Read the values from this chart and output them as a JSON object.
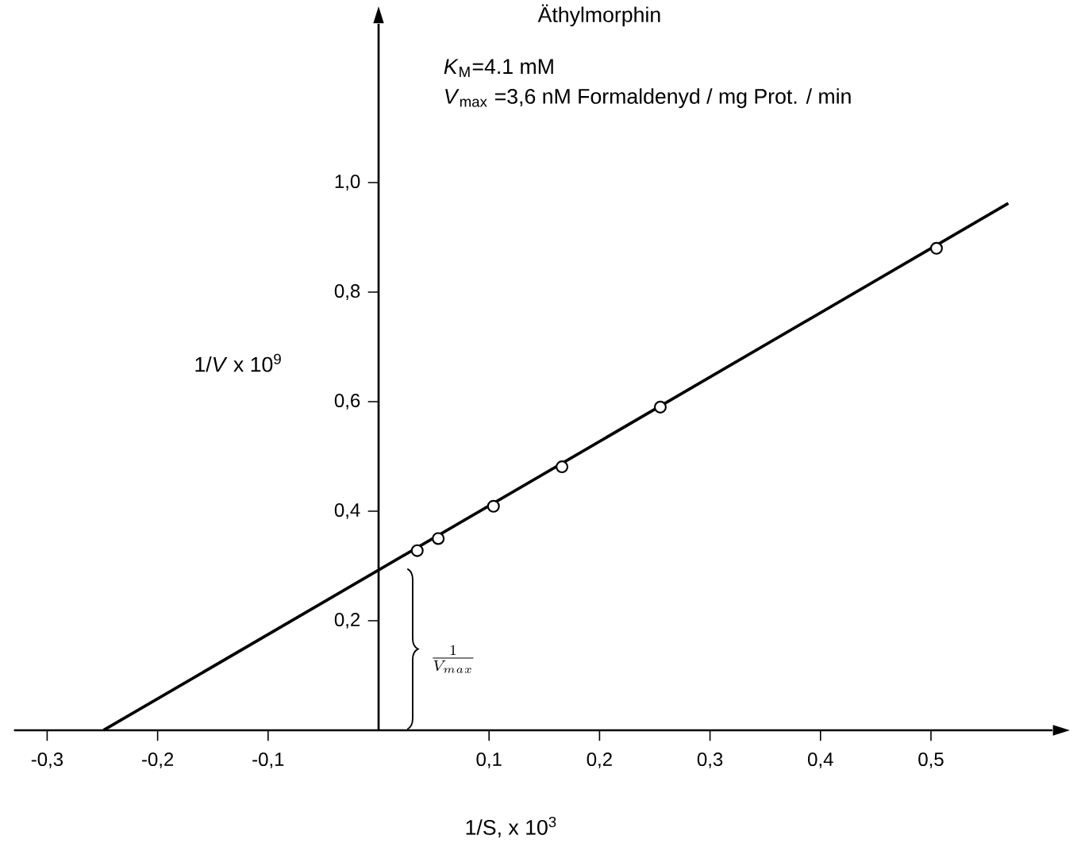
{
  "chart_data": {
    "type": "scatter",
    "title": "Äthylmorphin",
    "xlabel": "1/S, x 10$^{3}$",
    "ylabel": "1/*V* x 10$^{9}$",
    "annotations": [
      "*K*$_{M}$=4.1 mM",
      "*V*$_{max}$ =3,6 nM Formaldenyd / mg Prot. / min",
      "\\frac{1}{V_{max}}"
    ],
    "xlim": [
      -0.33,
      0.61
    ],
    "ylim": [
      0,
      1.29
    ],
    "xticks": [
      {
        "value": -0.3,
        "label": "-0,3"
      },
      {
        "value": -0.2,
        "label": "-0,2"
      },
      {
        "value": -0.1,
        "label": "-0,1"
      },
      {
        "value": 0.1,
        "label": "0,1"
      },
      {
        "value": 0.2,
        "label": "0,2"
      },
      {
        "value": 0.3,
        "label": "0,3"
      },
      {
        "value": 0.4,
        "label": "0,4"
      },
      {
        "value": 0.5,
        "label": "0,5"
      }
    ],
    "yticks": [
      {
        "value": 0.2,
        "label": "0,2"
      },
      {
        "value": 0.4,
        "label": "0,4"
      },
      {
        "value": 0.6,
        "label": "0,6"
      },
      {
        "value": 0.8,
        "label": "0,8"
      },
      {
        "value": 1.0,
        "label": "1,0"
      }
    ],
    "series": [
      {
        "type": "line",
        "color": "#000000",
        "marker": "none",
        "line_style": "solid",
        "x": [
          -0.249,
          0.57
        ],
        "values": [
          0,
          0.962
        ]
      },
      {
        "color": "#000000",
        "marker": "circle",
        "x": [
          0.035,
          0.054,
          0.104,
          0.166,
          0.255,
          0.505
        ],
        "values": [
          0.328,
          0.35,
          0.409,
          0.481,
          0.59,
          0.88
        ]
      }
    ]
  }
}
